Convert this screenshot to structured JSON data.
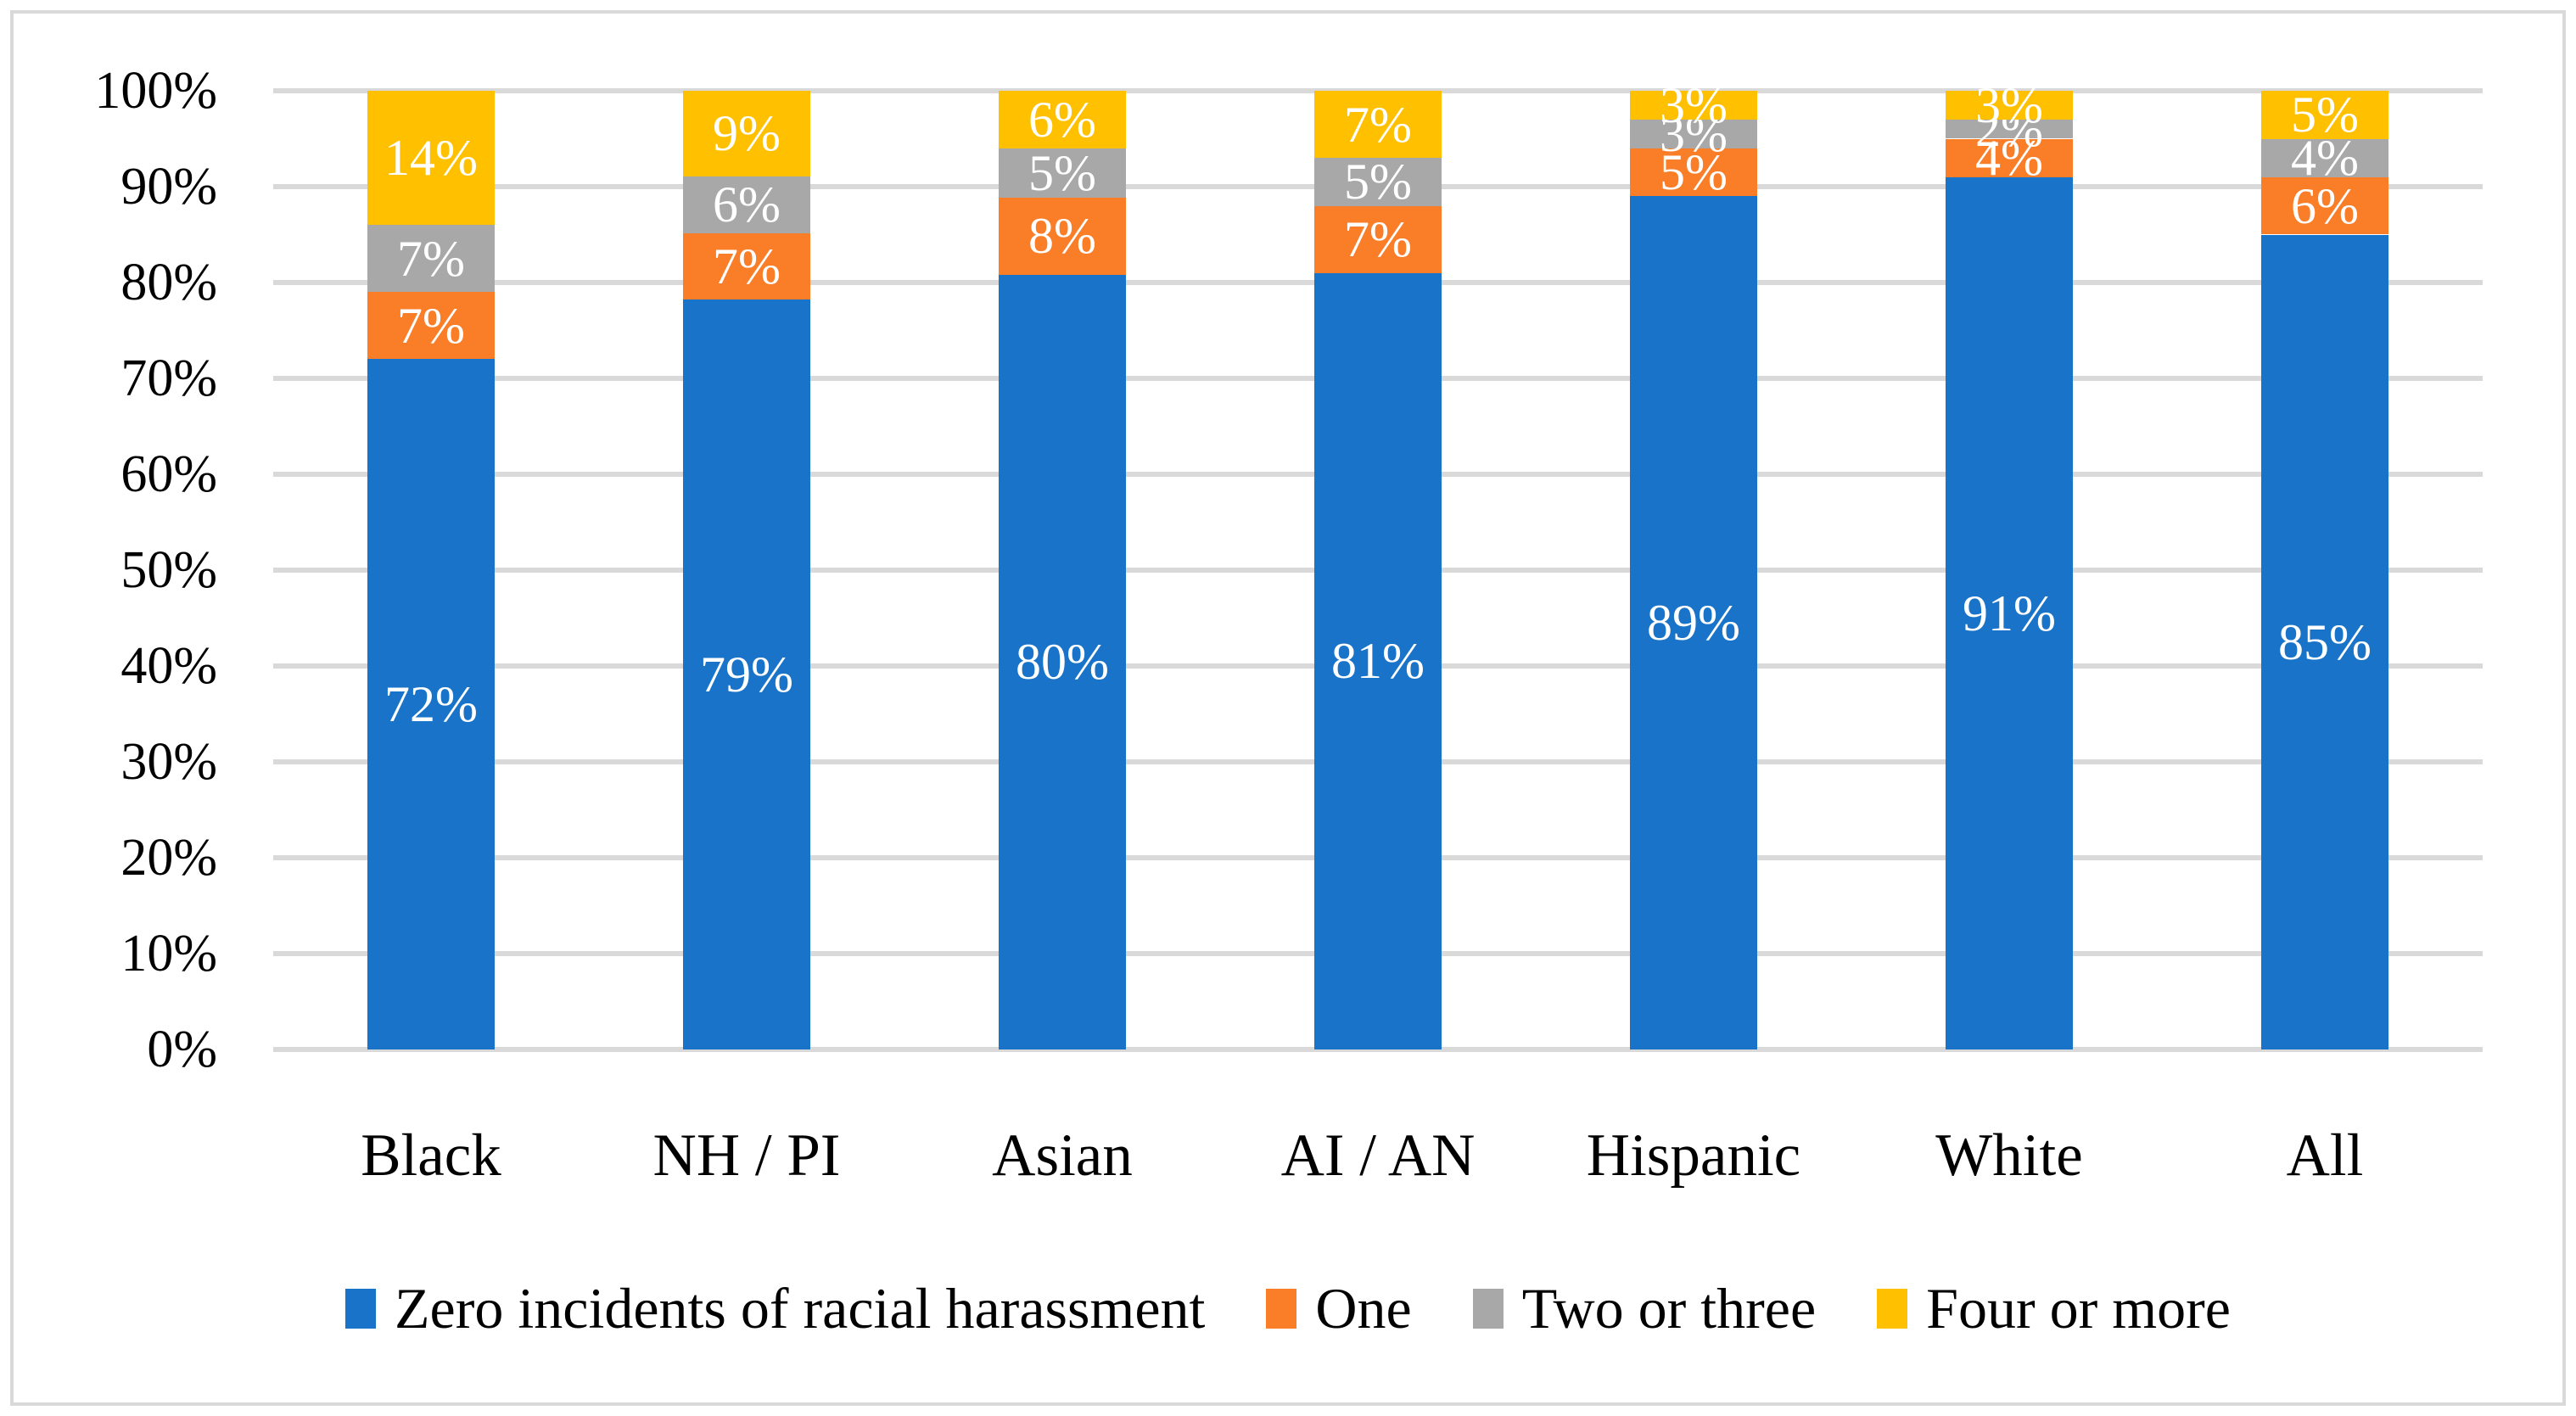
{
  "chart_data": {
    "type": "bar",
    "stacked": true,
    "orientation": "vertical",
    "title": "",
    "xlabel": "",
    "ylabel": "",
    "categories": [
      "Black",
      "NH / PI",
      "Asian",
      "AI / AN",
      "Hispanic",
      "White",
      "All"
    ],
    "series": [
      {
        "name": "Zero incidents of racial harassment",
        "color": "#1973C8",
        "values": [
          72,
          79,
          80,
          81,
          89,
          91,
          85
        ],
        "labels": [
          "72%",
          "79%",
          "80%",
          "81%",
          "89%",
          "91%",
          "85%"
        ]
      },
      {
        "name": "One",
        "color": "#FA7D28",
        "values": [
          7,
          7,
          8,
          7,
          5,
          4,
          6
        ],
        "labels": [
          "7%",
          "7%",
          "8%",
          "7%",
          "5%",
          "4%",
          "6%"
        ]
      },
      {
        "name": "Two or three",
        "color": "#A8A8A8",
        "values": [
          7,
          6,
          5,
          5,
          3,
          2,
          4
        ],
        "labels": [
          "7%",
          "6%",
          "5%",
          "5%",
          "3%",
          "2%",
          "4%"
        ]
      },
      {
        "name": "Four or more",
        "color": "#FFC000",
        "values": [
          14,
          9,
          6,
          7,
          3,
          3,
          5
        ],
        "labels": [
          "14%",
          "9%",
          "6%",
          "7%",
          "3%",
          "3%",
          "5%"
        ]
      }
    ],
    "y_axis": {
      "min": 0,
      "max": 100,
      "tick_step": 10,
      "tick_labels": [
        "0%",
        "10%",
        "20%",
        "30%",
        "40%",
        "50%",
        "60%",
        "70%",
        "80%",
        "90%",
        "100%"
      ]
    },
    "grid": true,
    "gridline_color": "#D9D9D9",
    "data_label_color": "#FFFFFF",
    "legend_position": "bottom",
    "frame_border_color": "#D9D9D9",
    "background_color": "#FFFFFF"
  }
}
